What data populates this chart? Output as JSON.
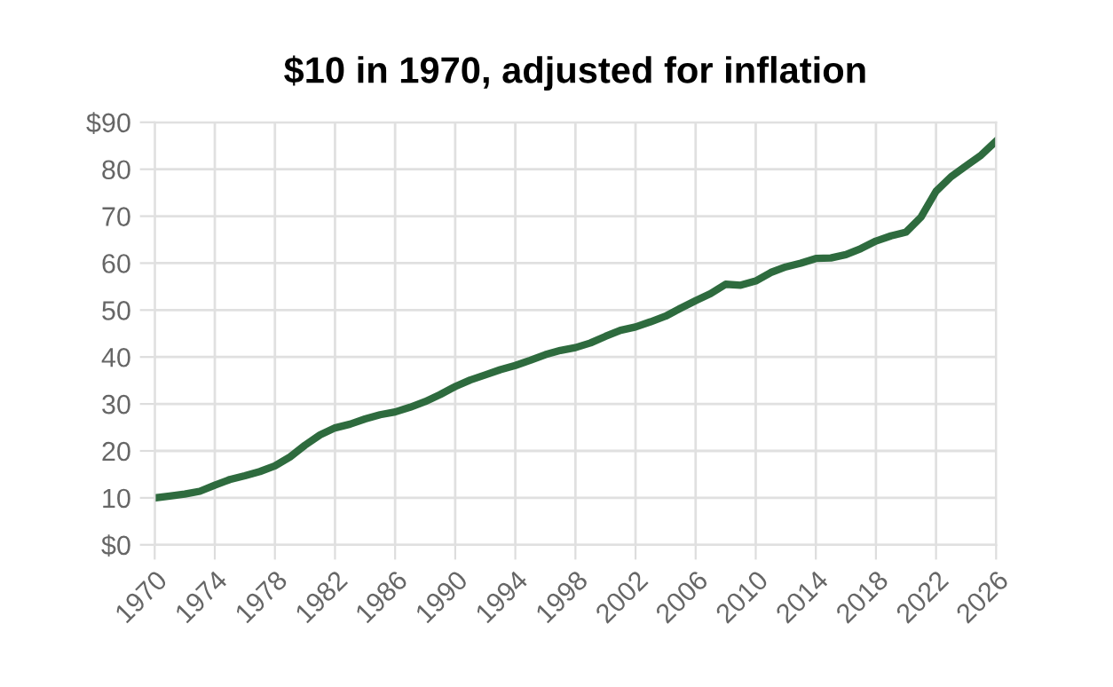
{
  "chart_data": {
    "type": "line",
    "title": "$10 in 1970, adjusted for inflation",
    "x": [
      1970,
      1971,
      1972,
      1973,
      1974,
      1975,
      1976,
      1977,
      1978,
      1979,
      1980,
      1981,
      1982,
      1983,
      1984,
      1985,
      1986,
      1987,
      1988,
      1989,
      1990,
      1991,
      1992,
      1993,
      1994,
      1995,
      1996,
      1997,
      1998,
      1999,
      2000,
      2001,
      2002,
      2003,
      2004,
      2005,
      2006,
      2007,
      2008,
      2009,
      2010,
      2011,
      2012,
      2013,
      2014,
      2015,
      2016,
      2017,
      2018,
      2019,
      2020,
      2021,
      2022,
      2023,
      2024,
      2025,
      2026
    ],
    "series": [
      {
        "color": "#2e6b3e",
        "values": [
          10.0,
          10.4,
          10.8,
          11.4,
          12.7,
          13.9,
          14.7,
          15.6,
          16.8,
          18.7,
          21.2,
          23.4,
          24.9,
          25.7,
          26.8,
          27.7,
          28.3,
          29.3,
          30.5,
          32.0,
          33.7,
          35.1,
          36.2,
          37.3,
          38.2,
          39.3,
          40.5,
          41.4,
          42.0,
          43.0,
          44.4,
          45.7,
          46.4,
          47.5,
          48.7,
          50.4,
          52.0,
          53.5,
          55.5,
          55.3,
          56.2,
          58.0,
          59.2,
          60.0,
          61.0,
          61.1,
          61.8,
          63.1,
          64.7,
          65.8,
          66.6,
          69.8,
          75.3,
          78.4,
          80.7,
          83.0,
          86.0
        ]
      }
    ],
    "xlim": [
      1970,
      2026
    ],
    "xticks": [
      1970,
      1974,
      1978,
      1982,
      1986,
      1990,
      1994,
      1998,
      2002,
      2006,
      2010,
      2014,
      2018,
      2022,
      2026
    ],
    "ylim": [
      0,
      90
    ],
    "yticks": [
      {
        "value": 0,
        "label": "$0"
      },
      10,
      20,
      30,
      40,
      50,
      60,
      70,
      80,
      {
        "value": 90,
        "label": "$90"
      }
    ],
    "grid": true,
    "marker": "none",
    "line_style": "solid"
  }
}
